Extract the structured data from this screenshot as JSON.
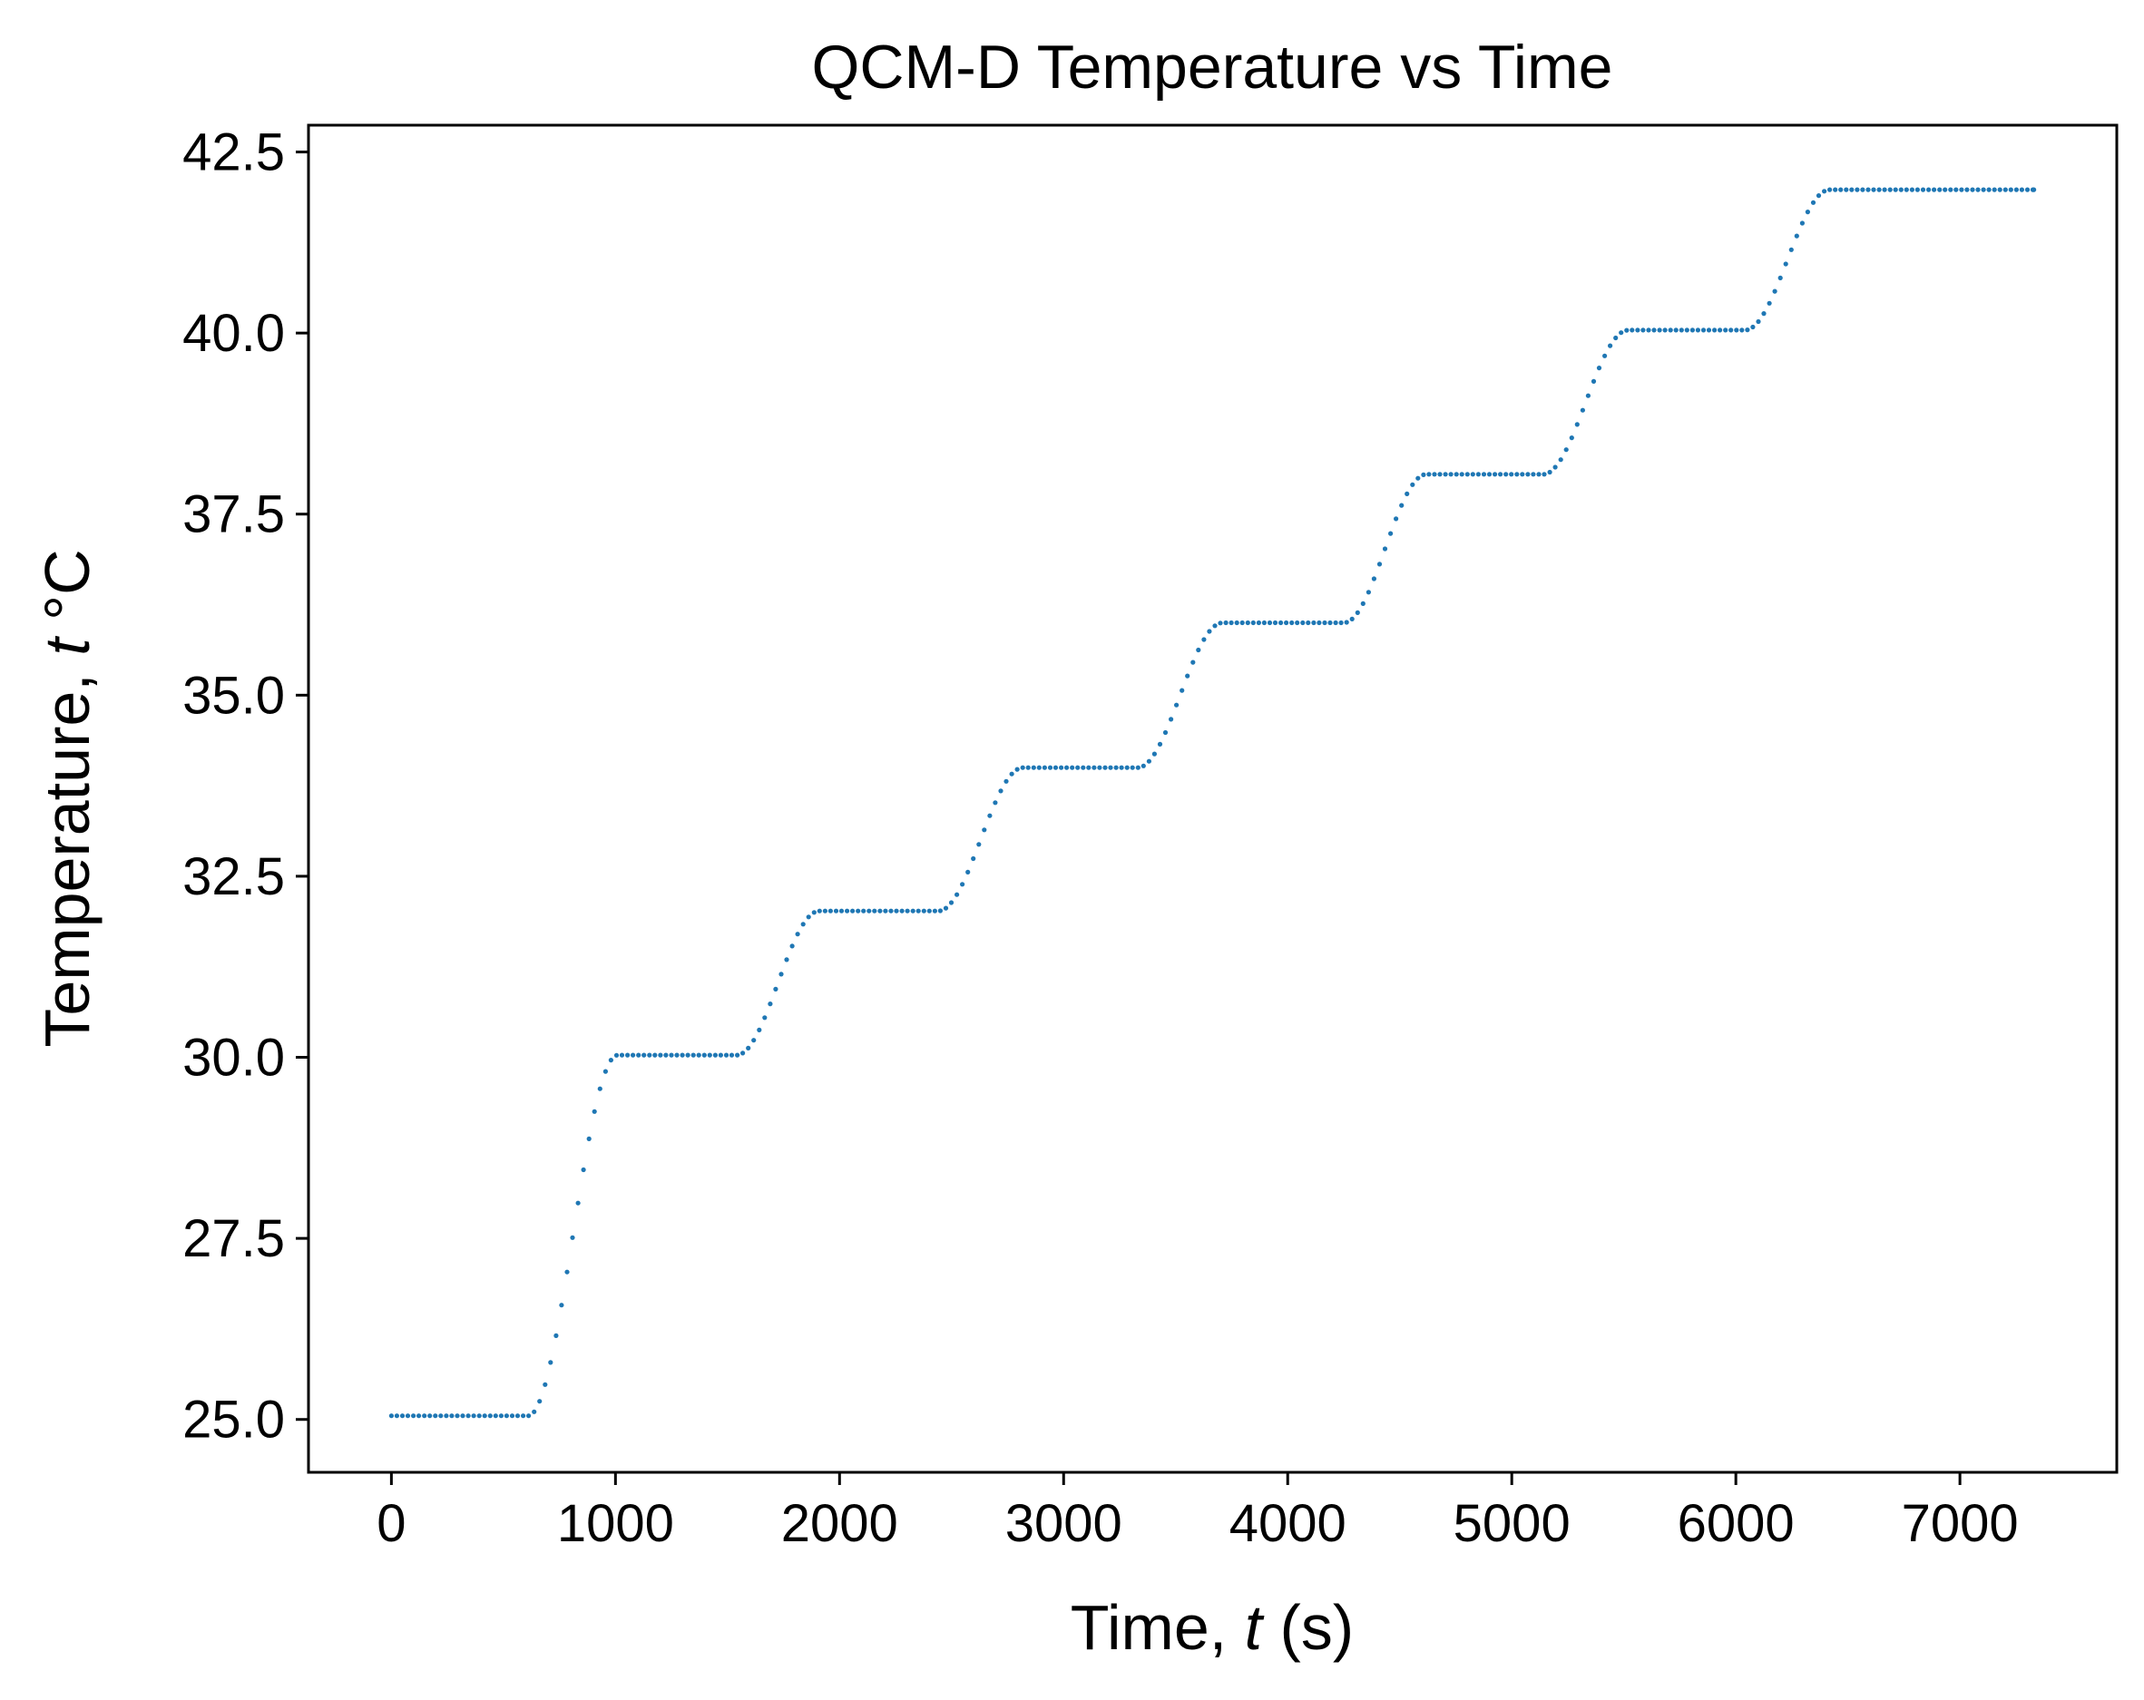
{
  "chart_data": {
    "type": "scatter",
    "title": "QCM-D Temperature vs Time",
    "xlabel_parts": [
      "Time, ",
      "t",
      " (s)"
    ],
    "ylabel_parts": [
      "Temperature, ",
      "t",
      " °C"
    ],
    "xlim": [
      -370,
      7700
    ],
    "ylim": [
      24.27,
      42.87
    ],
    "xticks": [
      0,
      1000,
      2000,
      3000,
      4000,
      5000,
      6000,
      7000
    ],
    "xtick_labels": [
      "0",
      "1000",
      "2000",
      "3000",
      "4000",
      "5000",
      "6000",
      "7000"
    ],
    "yticks": [
      25.0,
      27.5,
      30.0,
      32.5,
      35.0,
      37.5,
      40.0,
      42.5
    ],
    "ytick_labels": [
      "25.0",
      "27.5",
      "30.0",
      "32.5",
      "35.0",
      "37.5",
      "40.0",
      "42.5"
    ],
    "grid": false,
    "marker_color": "#1f77b4",
    "series": [
      {
        "sample_interval_s": 24.5,
        "segments": [
          {
            "type": "plateau",
            "x": [
              0,
              610
            ],
            "y": 25.05
          },
          {
            "type": "ramp",
            "x": [
              610,
              1010
            ],
            "y": [
              25.05,
              30.03
            ]
          },
          {
            "type": "plateau",
            "x": [
              1010,
              1540
            ],
            "y": 30.03
          },
          {
            "type": "ramp",
            "x": [
              1540,
              1910
            ],
            "y": [
              30.03,
              32.02
            ]
          },
          {
            "type": "plateau",
            "x": [
              1910,
              2440
            ],
            "y": 32.02
          },
          {
            "type": "ramp",
            "x": [
              2440,
              2820
            ],
            "y": [
              32.02,
              34.0
            ]
          },
          {
            "type": "plateau",
            "x": [
              2820,
              3330
            ],
            "y": 34.0
          },
          {
            "type": "ramp",
            "x": [
              3330,
              3710
            ],
            "y": [
              34.0,
              36.0
            ]
          },
          {
            "type": "plateau",
            "x": [
              3710,
              4250
            ],
            "y": 36.0
          },
          {
            "type": "ramp",
            "x": [
              4250,
              4620
            ],
            "y": [
              36.0,
              38.05
            ]
          },
          {
            "type": "plateau",
            "x": [
              4620,
              5140
            ],
            "y": 38.05
          },
          {
            "type": "ramp",
            "x": [
              5140,
              5520
            ],
            "y": [
              38.05,
              40.04
            ]
          },
          {
            "type": "plateau",
            "x": [
              5520,
              6040
            ],
            "y": 40.04
          },
          {
            "type": "ramp",
            "x": [
              6040,
              6420
            ],
            "y": [
              40.04,
              41.98
            ]
          },
          {
            "type": "plateau",
            "x": [
              6420,
              7330
            ],
            "y": 41.98
          }
        ]
      }
    ]
  }
}
